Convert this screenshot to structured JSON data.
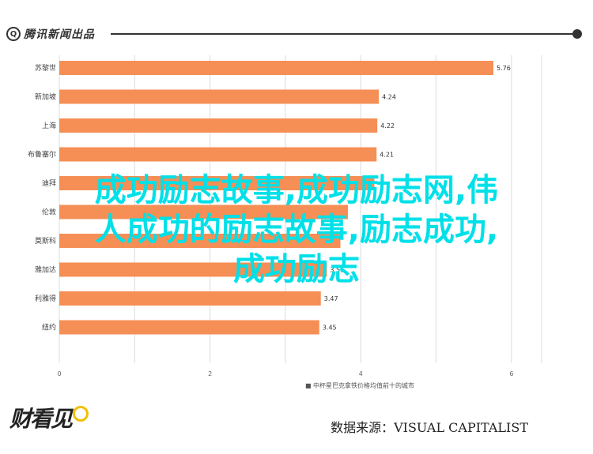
{
  "header": {
    "logo_text": "腾讯新闻出品"
  },
  "overlay_title": "成功励志故事,成功励志网,伟\n人成功的励志故事,励志成功,\n成功励志",
  "footer": {
    "logo_text": "财看见",
    "source_text": "数据来源：VISUAL CAPITALIST"
  },
  "chart_data": {
    "type": "bar",
    "orientation": "horizontal",
    "categories": [
      "苏黎世",
      "新加坡",
      "上海",
      "布鲁塞尔",
      "迪拜",
      "伦敦",
      "莫斯科",
      "雅加达",
      "利雅得",
      "纽约"
    ],
    "values": [
      5.76,
      4.24,
      4.22,
      4.21,
      4.18,
      3.83,
      3.73,
      3.55,
      3.47,
      3.45
    ],
    "value_labels": [
      "5.76",
      "4.24",
      "4.22",
      "4.21",
      "",
      "",
      "",
      "3.55",
      "3.47",
      "3.45"
    ],
    "xlim": [
      0,
      6.4
    ],
    "xticks": [
      0,
      2,
      4,
      6
    ],
    "source_note": "■ 中杯星巴克拿铁价格均值前十的城市",
    "bar_color": "#f58f55",
    "grid": true
  }
}
